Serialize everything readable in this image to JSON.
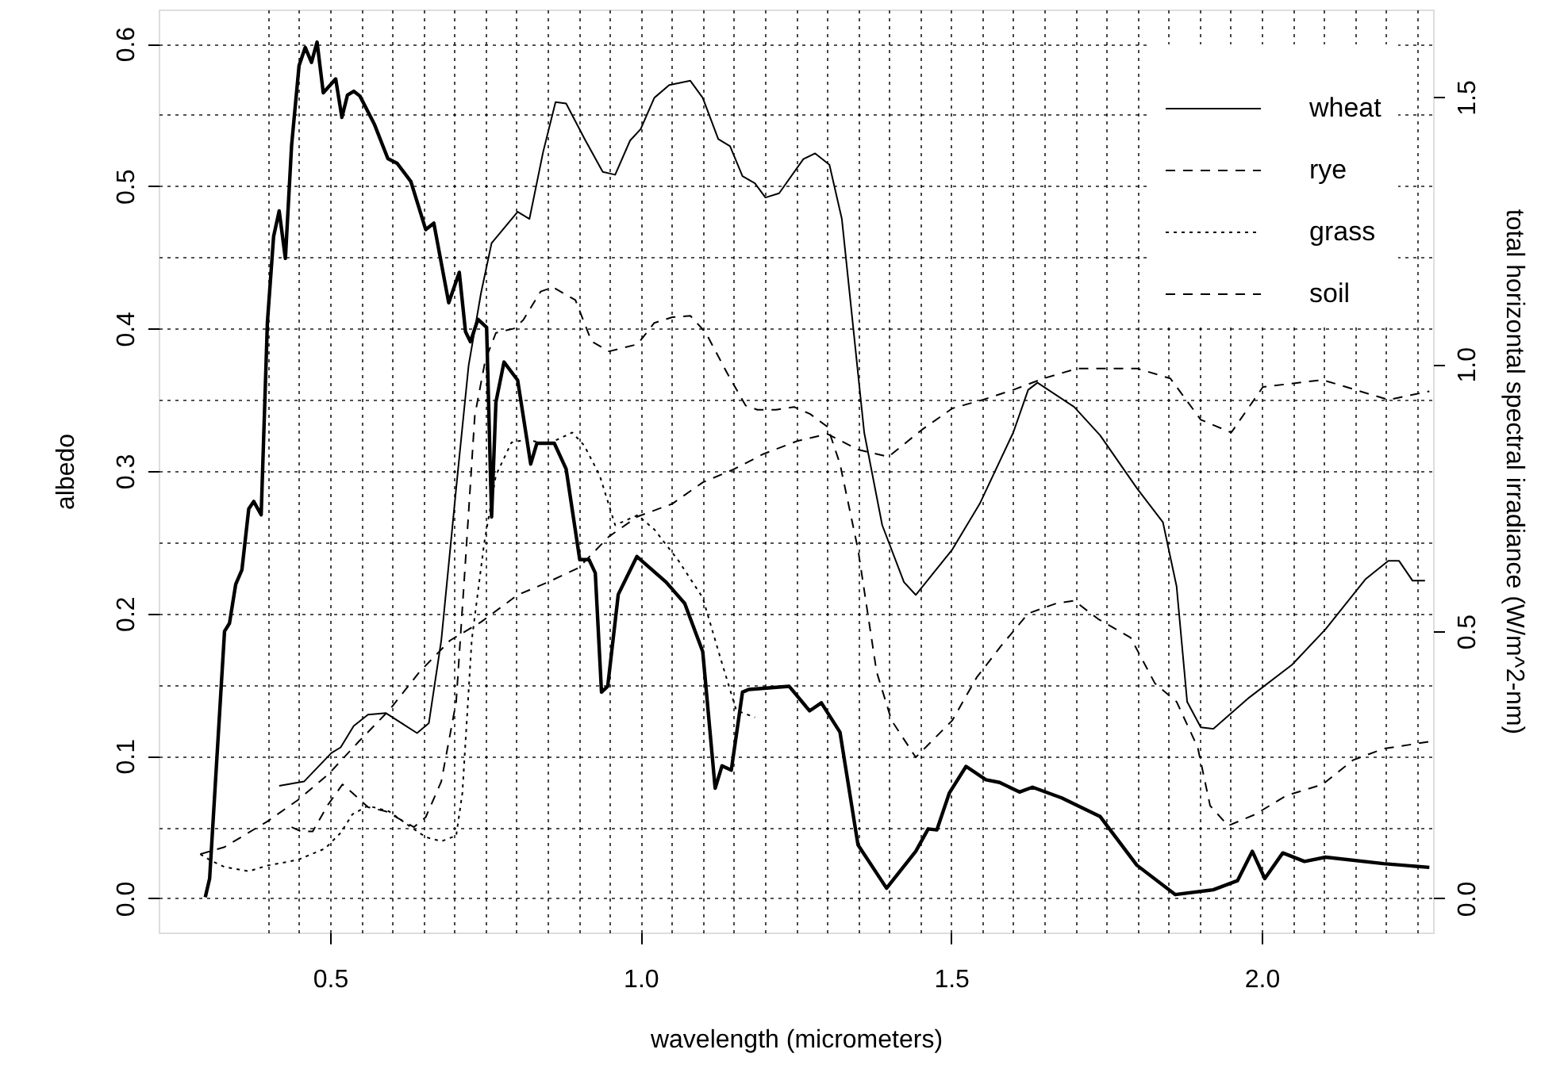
{
  "chart_data": {
    "type": "line",
    "xlabel": "wavelength (micrometers)",
    "ylabel": "albedo",
    "y2label": "total horizontal spectral irradiance (W/m^2-nm)",
    "xlim": [
      0.224,
      2.276
    ],
    "ylim": [
      -0.024,
      0.624
    ],
    "y2lim": [
      -0.064,
      1.664
    ],
    "xticks": [
      {
        "value": 0.4,
        "label": null
      },
      {
        "value": 0.45,
        "label": null
      },
      0.5,
      {
        "value": 0.55,
        "label": null
      },
      {
        "value": 0.6,
        "label": null
      },
      {
        "value": 0.65,
        "label": null
      },
      {
        "value": 0.7,
        "label": null
      },
      {
        "value": 0.75,
        "label": null
      },
      {
        "value": 0.8,
        "label": null
      },
      {
        "value": 0.85,
        "label": null
      },
      {
        "value": 0.9,
        "label": null
      },
      {
        "value": 0.95,
        "label": null
      },
      {
        "value": 1,
        "label": "1.0"
      },
      {
        "value": 1.05,
        "label": null
      },
      {
        "value": 1.1,
        "label": null
      },
      {
        "value": 1.15,
        "label": null
      },
      {
        "value": 1.2,
        "label": null
      },
      {
        "value": 1.25,
        "label": null
      },
      {
        "value": 1.3,
        "label": null
      },
      {
        "value": 1.35,
        "label": null
      },
      {
        "value": 1.4,
        "label": null
      },
      {
        "value": 1.45,
        "label": null
      },
      1.5,
      {
        "value": 1.55,
        "label": null
      },
      {
        "value": 1.6,
        "label": null
      },
      {
        "value": 1.65,
        "label": null
      },
      {
        "value": 1.7,
        "label": null
      },
      {
        "value": 1.75,
        "label": null
      },
      {
        "value": 1.8,
        "label": null
      },
      {
        "value": 1.85,
        "label": null
      },
      {
        "value": 1.9,
        "label": null
      },
      {
        "value": 1.95,
        "label": null
      },
      {
        "value": 2,
        "label": "2.0"
      },
      {
        "value": 2.05,
        "label": null
      },
      {
        "value": 2.1,
        "label": null
      },
      {
        "value": 2.15,
        "label": null
      },
      {
        "value": 2.2,
        "label": null
      },
      {
        "value": 2.25,
        "label": null
      }
    ],
    "yticks": [
      {
        "value": 0,
        "label": "0.0"
      },
      {
        "value": 0.05,
        "label": null
      },
      0.1,
      {
        "value": 0.15,
        "label": null
      },
      0.2,
      {
        "value": 0.25,
        "label": null
      },
      0.3,
      {
        "value": 0.35,
        "label": null
      },
      0.4,
      {
        "value": 0.45,
        "label": null
      },
      0.5,
      {
        "value": 0.55,
        "label": null
      },
      0.6
    ],
    "y2ticks": [
      {
        "value": 0,
        "label": "0.0"
      },
      0.5,
      {
        "value": 1,
        "label": "1.0"
      },
      1.5
    ],
    "grid": true,
    "legend": "top right",
    "series": [
      {
        "name": "wheat",
        "color": "#000000",
        "line_style": "solid",
        "x": [
          0.418,
          0.458,
          0.502,
          0.517,
          0.538,
          0.561,
          0.59,
          0.64,
          0.659,
          0.679,
          0.703,
          0.723,
          0.743,
          0.76,
          0.802,
          0.821,
          0.843,
          0.863,
          0.88,
          0.91,
          0.939,
          0.959,
          0.983,
          1.0,
          1.022,
          1.046,
          1.08,
          1.1,
          1.125,
          1.144,
          1.164,
          1.184,
          1.201,
          1.223,
          1.262,
          1.281,
          1.304,
          1.324,
          1.36,
          1.389,
          1.424,
          1.443,
          1.502,
          1.546,
          1.6,
          1.624,
          1.639,
          1.698,
          1.74,
          1.799,
          1.841,
          1.863,
          1.88,
          1.902,
          1.922,
          1.98,
          2.049,
          2.103,
          2.167,
          2.204,
          2.221,
          2.243,
          2.263
        ],
        "values": [
          0.079,
          0.082,
          0.102,
          0.106,
          0.121,
          0.129,
          0.13,
          0.116,
          0.123,
          0.181,
          0.288,
          0.374,
          0.425,
          0.46,
          0.482,
          0.477,
          0.524,
          0.559,
          0.558,
          0.533,
          0.51,
          0.508,
          0.532,
          0.54,
          0.562,
          0.571,
          0.574,
          0.562,
          0.533,
          0.528,
          0.507,
          0.502,
          0.492,
          0.495,
          0.519,
          0.523,
          0.515,
          0.477,
          0.327,
          0.262,
          0.222,
          0.213,
          0.245,
          0.277,
          0.327,
          0.357,
          0.362,
          0.345,
          0.325,
          0.288,
          0.264,
          0.219,
          0.138,
          0.12,
          0.119,
          0.141,
          0.164,
          0.189,
          0.224,
          0.237,
          0.237,
          0.223,
          0.223
        ]
      },
      {
        "name": "rye",
        "color": "#000000",
        "line_style": "dashed",
        "x": [
          0.438,
          0.453,
          0.472,
          0.497,
          0.52,
          0.536,
          0.561,
          0.59,
          0.635,
          0.654,
          0.679,
          0.703,
          0.718,
          0.733,
          0.75,
          0.767,
          0.796,
          0.811,
          0.839,
          0.859,
          0.895,
          0.921,
          0.949,
          0.995,
          1.022,
          1.051,
          1.08,
          1.105,
          1.139,
          1.169,
          1.188,
          1.218,
          1.247,
          1.273,
          1.301,
          1.321,
          1.35,
          1.38,
          1.404,
          1.443,
          1.502,
          1.541,
          1.58,
          1.624,
          1.669,
          1.698,
          1.737,
          1.789,
          1.828,
          1.863,
          1.897,
          1.917,
          1.946,
          1.99,
          2.039,
          2.098,
          2.147,
          2.196,
          2.27
        ],
        "values": [
          0.05,
          0.047,
          0.047,
          0.066,
          0.08,
          0.074,
          0.064,
          0.061,
          0.05,
          0.057,
          0.082,
          0.138,
          0.237,
          0.339,
          0.378,
          0.397,
          0.4,
          0.406,
          0.426,
          0.429,
          0.42,
          0.391,
          0.384,
          0.389,
          0.404,
          0.408,
          0.409,
          0.397,
          0.369,
          0.346,
          0.343,
          0.343,
          0.345,
          0.34,
          0.331,
          0.305,
          0.245,
          0.159,
          0.125,
          0.099,
          0.125,
          0.155,
          0.177,
          0.2,
          0.207,
          0.209,
          0.196,
          0.183,
          0.151,
          0.138,
          0.106,
          0.065,
          0.051,
          0.059,
          0.072,
          0.08,
          0.097,
          0.105,
          0.11
        ]
      },
      {
        "name": "grass",
        "color": "#000000",
        "line_style": "dotted",
        "x": [
          0.291,
          0.306,
          0.33,
          0.369,
          0.399,
          0.448,
          0.492,
          0.517,
          0.536,
          0.561,
          0.595,
          0.63,
          0.654,
          0.679,
          0.703,
          0.713,
          0.728,
          0.748,
          0.767,
          0.792,
          0.816,
          0.851,
          0.89,
          0.909,
          0.934,
          0.959,
          0.995,
          1.022,
          1.061,
          1.1,
          1.129,
          1.154,
          1.184
        ],
        "values": [
          0.031,
          0.027,
          0.022,
          0.019,
          0.023,
          0.027,
          0.035,
          0.046,
          0.059,
          0.065,
          0.061,
          0.05,
          0.043,
          0.04,
          0.044,
          0.074,
          0.181,
          0.249,
          0.297,
          0.32,
          0.322,
          0.319,
          0.327,
          0.318,
          0.297,
          0.262,
          0.269,
          0.259,
          0.237,
          0.211,
          0.168,
          0.132,
          0.127
        ]
      },
      {
        "name": "soil",
        "color": "#000000",
        "line_style": "dashed",
        "x": [
          0.291,
          0.33,
          0.399,
          0.448,
          0.497,
          0.546,
          0.595,
          0.644,
          0.693,
          0.743,
          0.802,
          0.851,
          0.9,
          0.949,
          0.995,
          1.051,
          1.1,
          1.149,
          1.198,
          1.252,
          1.301,
          1.35,
          1.399,
          1.453,
          1.502,
          1.551,
          1.6,
          1.649,
          1.703,
          1.799,
          1.853,
          1.902,
          1.951,
          2.002,
          2.098,
          2.204,
          2.27
        ],
        "values": [
          0.031,
          0.036,
          0.054,
          0.069,
          0.087,
          0.11,
          0.132,
          0.159,
          0.181,
          0.194,
          0.213,
          0.222,
          0.232,
          0.254,
          0.268,
          0.277,
          0.292,
          0.301,
          0.312,
          0.321,
          0.326,
          0.315,
          0.31,
          0.329,
          0.344,
          0.35,
          0.357,
          0.365,
          0.372,
          0.372,
          0.365,
          0.336,
          0.327,
          0.359,
          0.364,
          0.35,
          0.356
        ]
      },
      {
        "color": "#000000",
        "line_style": "solid",
        "axis": "y2",
        "x": [
          0.299,
          0.306,
          0.33,
          0.338,
          0.348,
          0.358,
          0.369,
          0.377,
          0.389,
          0.399,
          0.409,
          0.418,
          0.428,
          0.438,
          0.45,
          0.46,
          0.47,
          0.479,
          0.489,
          0.509,
          0.519,
          0.528,
          0.538,
          0.548,
          0.571,
          0.593,
          0.608,
          0.63,
          0.654,
          0.667,
          0.691,
          0.708,
          0.718,
          0.726,
          0.738,
          0.752,
          0.76,
          0.767,
          0.78,
          0.802,
          0.823,
          0.833,
          0.861,
          0.88,
          0.902,
          0.917,
          0.927,
          0.937,
          0.947,
          0.964,
          0.994,
          1.041,
          1.071,
          1.1,
          1.12,
          1.131,
          1.146,
          1.164,
          1.174,
          1.239,
          1.272,
          1.291,
          1.321,
          1.35,
          1.396,
          1.443,
          1.463,
          1.477,
          1.497,
          1.524,
          1.556,
          1.578,
          1.61,
          1.631,
          1.678,
          1.74,
          1.799,
          1.861,
          1.922,
          1.961,
          1.985,
          2.005,
          2.034,
          2.069,
          2.103,
          2.196,
          2.27
        ],
        "values": [
          0.002,
          0.037,
          0.5,
          0.515,
          0.588,
          0.615,
          0.729,
          0.743,
          0.718,
          1.078,
          1.239,
          1.287,
          1.198,
          1.41,
          1.559,
          1.593,
          1.565,
          1.603,
          1.508,
          1.534,
          1.462,
          1.504,
          1.511,
          1.502,
          1.45,
          1.385,
          1.376,
          1.342,
          1.252,
          1.264,
          1.115,
          1.172,
          1.061,
          1.042,
          1.084,
          1.069,
          0.714,
          0.929,
          1.004,
          0.97,
          0.813,
          0.852,
          0.852,
          0.804,
          0.634,
          0.634,
          0.609,
          0.386,
          0.397,
          0.569,
          0.64,
          0.592,
          0.552,
          0.462,
          0.206,
          0.248,
          0.24,
          0.386,
          0.391,
          0.397,
          0.351,
          0.366,
          0.311,
          0.1,
          0.019,
          0.088,
          0.13,
          0.128,
          0.197,
          0.247,
          0.222,
          0.217,
          0.199,
          0.208,
          0.188,
          0.153,
          0.062,
          0.007,
          0.016,
          0.033,
          0.088,
          0.037,
          0.085,
          0.069,
          0.077,
          0.065,
          0.058
        ]
      }
    ]
  }
}
